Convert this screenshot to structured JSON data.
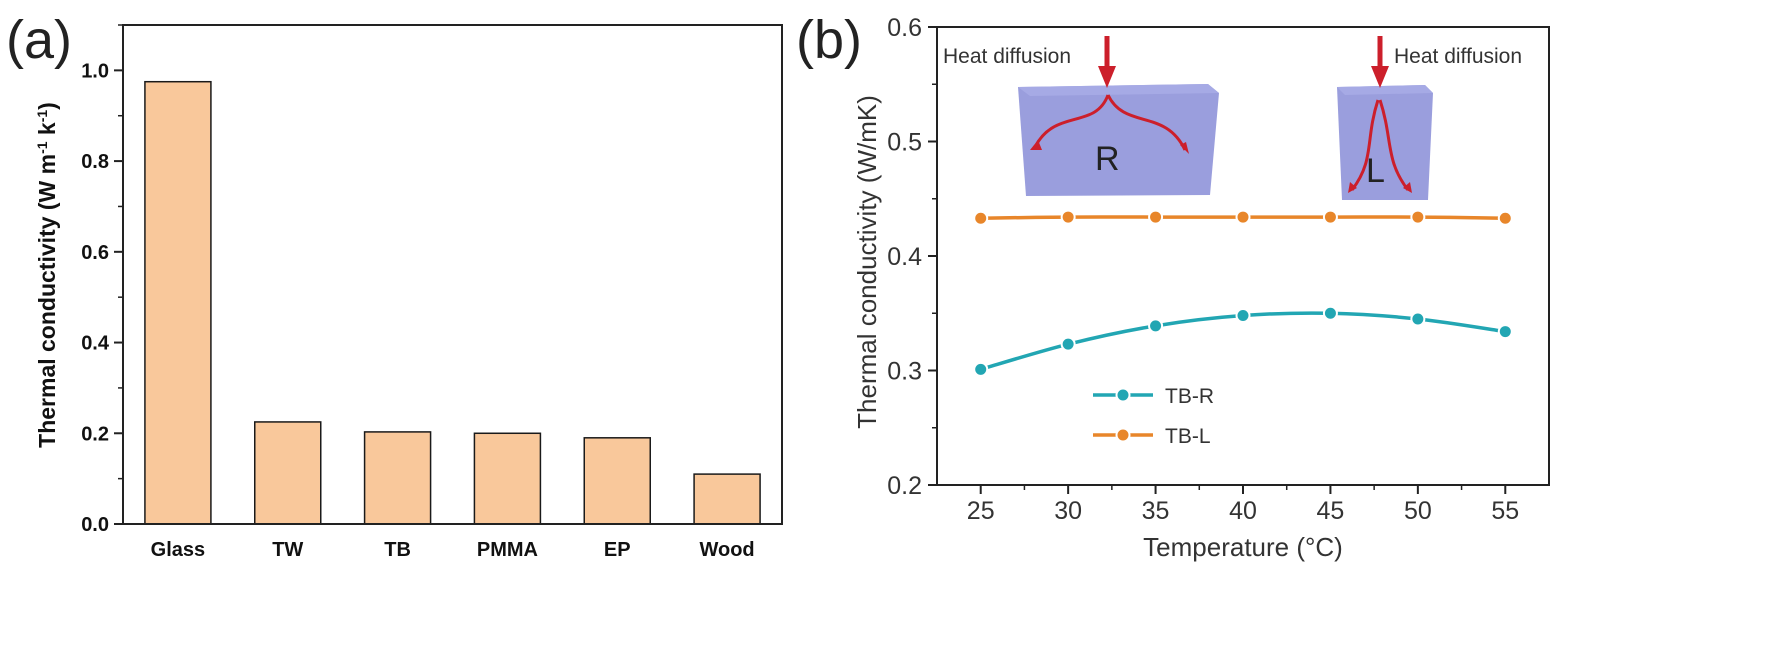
{
  "panels": {
    "a": {
      "label": "(a)",
      "y_label_main": "Thermal conductivity (W m",
      "y_label_sup1": "-1",
      "y_label_mid": " k",
      "y_label_sup2": "-1",
      "y_label_end": ")"
    },
    "b": {
      "label": "(b)",
      "inset": {
        "left_label": "Heat diffusion",
        "right_label": "Heat diffusion",
        "left_block": "R",
        "right_block": "L"
      }
    }
  },
  "colors": {
    "bar_fill": "#f9c89b",
    "bar_stroke": "#1a1a1a",
    "series_tb_r": "#22a6b3",
    "series_tb_l": "#e8862a",
    "arrow": "#cc1f2b",
    "block_fill": "#8f93d9",
    "axis": "#222222"
  },
  "chart_data": [
    {
      "type": "bar",
      "panel": "a",
      "title": "",
      "xlabel": "",
      "ylabel": "Thermal conductivity (W m-1 k-1)",
      "categories": [
        "Glass",
        "TW",
        "TB",
        "PMMA",
        "EP",
        "Wood"
      ],
      "values": [
        0.975,
        0.225,
        0.203,
        0.2,
        0.19,
        0.11
      ],
      "ylim": [
        0,
        1.1
      ],
      "yticks": [
        "0.0",
        "0.2",
        "0.4",
        "0.6",
        "0.8",
        "1.0"
      ]
    },
    {
      "type": "line",
      "panel": "b",
      "title": "",
      "xlabel": "Temperature (°C)",
      "ylabel": "Thermal conductivity (W/mK)",
      "x": [
        25,
        30,
        35,
        40,
        45,
        50,
        55
      ],
      "xticks": [
        "25",
        "30",
        "35",
        "40",
        "45",
        "50",
        "55"
      ],
      "yticks": [
        "0.2",
        "0.3",
        "0.4",
        "0.5",
        "0.6"
      ],
      "xlim": [
        22.5,
        57.5
      ],
      "ylim": [
        0.2,
        0.6
      ],
      "legend_position": "lower-left",
      "series": [
        {
          "name": "TB-R",
          "values": [
            0.301,
            0.323,
            0.339,
            0.348,
            0.35,
            0.345,
            0.334
          ]
        },
        {
          "name": "TB-L",
          "values": [
            0.433,
            0.434,
            0.434,
            0.434,
            0.434,
            0.434,
            0.433
          ]
        }
      ]
    }
  ]
}
